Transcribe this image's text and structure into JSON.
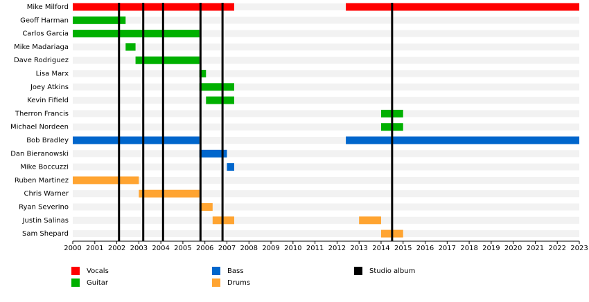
{
  "chart_data": {
    "type": "timeline",
    "categories": [
      "Mike Milford",
      "Geoff Harman",
      "Carlos Garcia",
      "Mike Madariaga",
      "Dave Rodriguez",
      "Lisa Marx",
      "Joey Atkins",
      "Kevin Fifield",
      "Therron Francis",
      "Michael Nordeen",
      "Bob Bradley",
      "Dan Bieranowski",
      "Mike Boccuzzi",
      "Ruben Martinez",
      "Chris Warner",
      "Ryan Severino",
      "Justin Salinas",
      "Sam Shepard"
    ],
    "series": [
      {
        "name": "Vocals",
        "color": "#ff0000",
        "bars": [
          {
            "member": "Mike Milford",
            "start": 2000,
            "end": 2007.33
          },
          {
            "member": "Mike Milford",
            "start": 2012.4,
            "end": 2023
          }
        ]
      },
      {
        "name": "Guitar",
        "color": "#00b000",
        "bars": [
          {
            "member": "Geoff Harman",
            "start": 2000,
            "end": 2002.4
          },
          {
            "member": "Carlos Garcia",
            "start": 2000,
            "end": 2005.75
          },
          {
            "member": "Mike Madariaga",
            "start": 2002.4,
            "end": 2002.85
          },
          {
            "member": "Dave Rodriguez",
            "start": 2002.85,
            "end": 2005.75
          },
          {
            "member": "Lisa Marx",
            "start": 2005.75,
            "end": 2006.05
          },
          {
            "member": "Joey Atkins",
            "start": 2005.75,
            "end": 2007.33
          },
          {
            "member": "Kevin Fifield",
            "start": 2006.05,
            "end": 2007.33
          },
          {
            "member": "Therron Francis",
            "start": 2014,
            "end": 2015
          },
          {
            "member": "Michael Nordeen",
            "start": 2014,
            "end": 2015
          }
        ]
      },
      {
        "name": "Bass",
        "color": "#0066cc",
        "bars": [
          {
            "member": "Bob Bradley",
            "start": 2000,
            "end": 2005.75
          },
          {
            "member": "Bob Bradley",
            "start": 2012.4,
            "end": 2023
          },
          {
            "member": "Dan Bieranowski",
            "start": 2005.75,
            "end": 2007.0
          },
          {
            "member": "Mike Boccuzzi",
            "start": 2007.0,
            "end": 2007.33
          }
        ]
      },
      {
        "name": "Drums",
        "color": "#ffa431",
        "bars": [
          {
            "member": "Ruben Martinez",
            "start": 2000,
            "end": 2003.0
          },
          {
            "member": "Chris Warner",
            "start": 2003.0,
            "end": 2005.75
          },
          {
            "member": "Ryan Severino",
            "start": 2005.75,
            "end": 2006.35
          },
          {
            "member": "Justin Salinas",
            "start": 2006.35,
            "end": 2007.33
          },
          {
            "member": "Justin Salinas",
            "start": 2013.0,
            "end": 2014.0
          },
          {
            "member": "Sam Shepard",
            "start": 2014,
            "end": 2015
          }
        ]
      }
    ],
    "markers": {
      "name": "Studio album",
      "color": "#000000",
      "values": [
        2002.1,
        2003.2,
        2004.1,
        2005.8,
        2006.8,
        2014.5
      ]
    },
    "xlim": [
      2000,
      2023
    ],
    "xticks": [
      2000,
      2001,
      2002,
      2003,
      2004,
      2005,
      2006,
      2007,
      2008,
      2009,
      2010,
      2011,
      2012,
      2013,
      2014,
      2015,
      2016,
      2017,
      2018,
      2019,
      2020,
      2021,
      2022,
      2023
    ]
  }
}
